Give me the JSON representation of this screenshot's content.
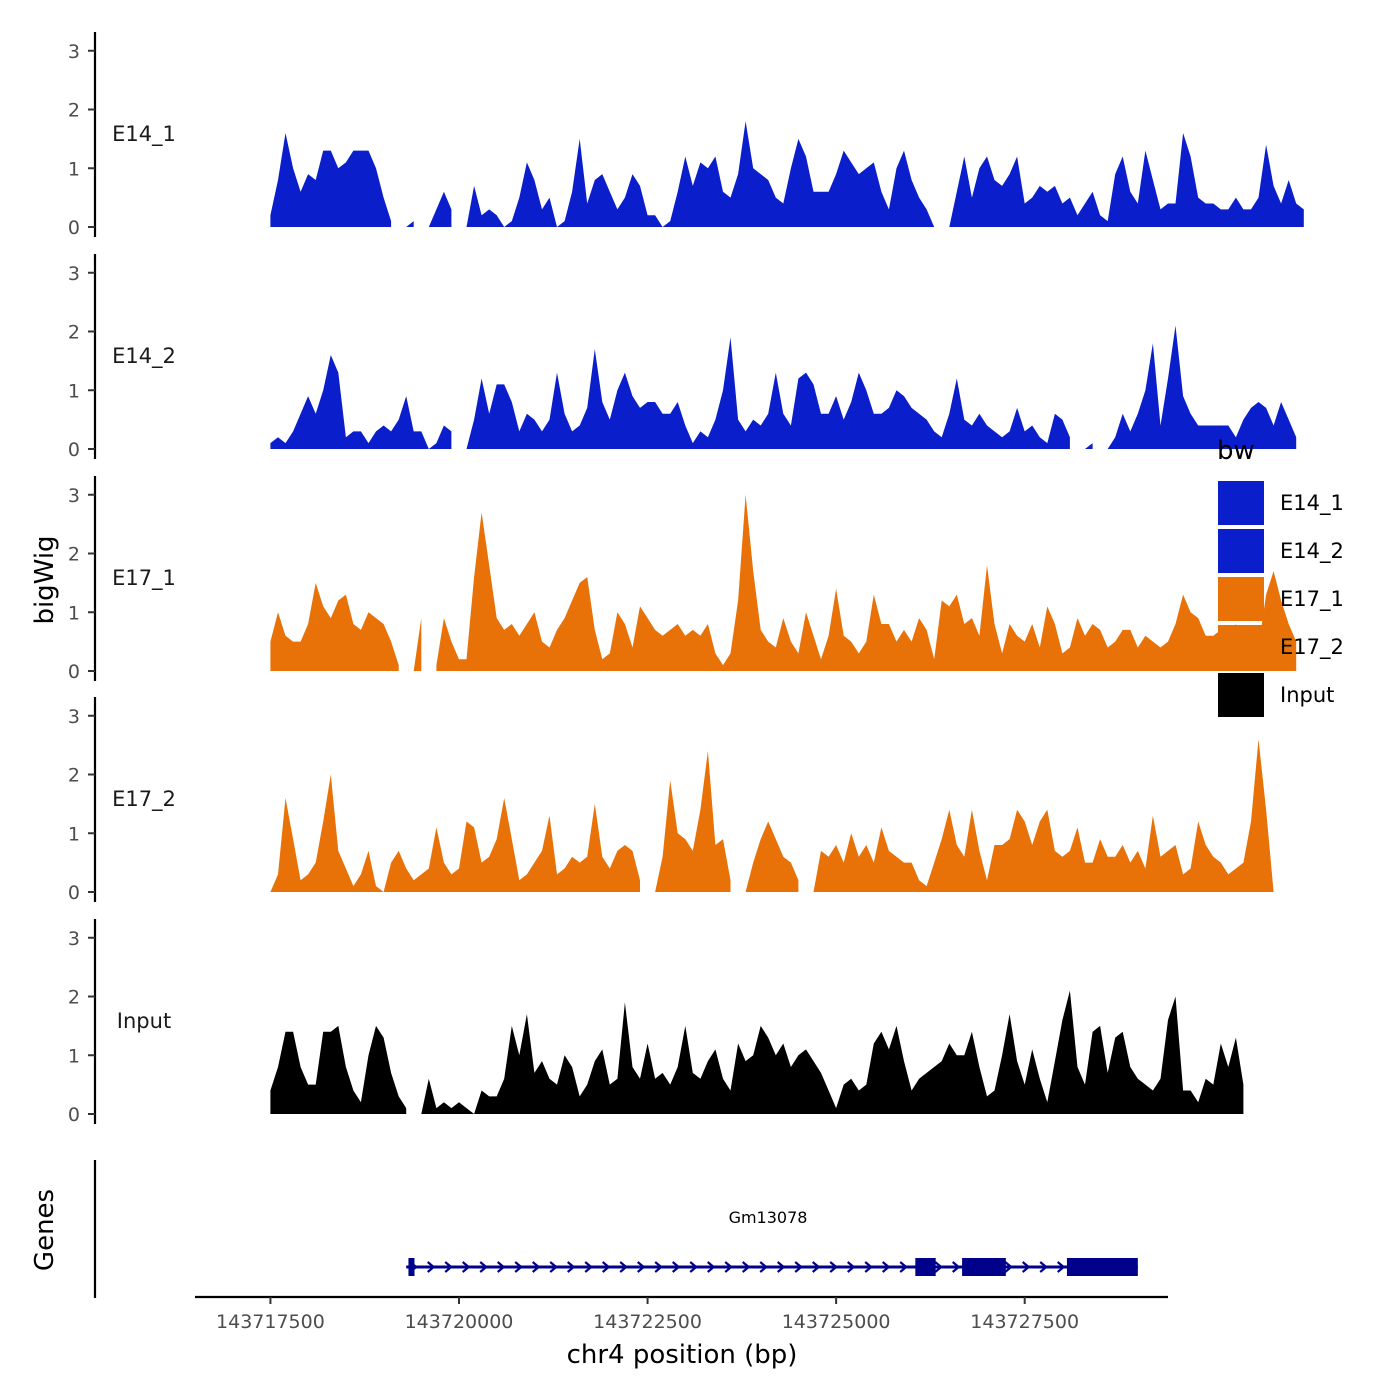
{
  "chart_data": {
    "type": "area",
    "title": "",
    "ylabel": "bigWig",
    "xlabel": "chr4 position (bp)",
    "genes_label": "Genes",
    "ylim": [
      0,
      3.2
    ],
    "yticks": [
      0,
      1,
      2,
      3
    ],
    "xlim": [
      143716500,
      143729400
    ],
    "xticks": [
      143717500,
      143720000,
      143722500,
      143725000,
      143727500
    ],
    "xtick_labels": [
      "143717500",
      "143720000",
      "143722500",
      "143725000",
      "143727500"
    ],
    "legend": {
      "title": "bw",
      "position": "right",
      "entries": [
        {
          "label": "E14_1",
          "color": "#0a1ecc"
        },
        {
          "label": "E14_2",
          "color": "#0a1ecc"
        },
        {
          "label": "E17_1",
          "color": "#e87207"
        },
        {
          "label": "E17_2",
          "color": "#e87207"
        },
        {
          "label": "Input",
          "color": "#000000"
        }
      ]
    },
    "series": [
      {
        "name": "E14_1",
        "label": "E14_1",
        "color": "#0a1ecc",
        "x0": 143717500,
        "step": 100,
        "values": [
          0.2,
          0.8,
          1.6,
          1.0,
          0.6,
          0.9,
          0.8,
          1.3,
          1.3,
          1.0,
          1.1,
          1.3,
          1.3,
          1.3,
          1.0,
          0.5,
          0.1,
          null,
          0.0,
          0.1,
          null,
          0.0,
          0.3,
          0.6,
          0.3,
          null,
          0.0,
          0.7,
          0.2,
          0.3,
          0.2,
          0.0,
          0.1,
          0.5,
          1.1,
          0.8,
          0.3,
          0.5,
          0.0,
          0.1,
          0.6,
          1.5,
          0.4,
          0.8,
          0.9,
          0.6,
          0.3,
          0.5,
          0.9,
          0.7,
          0.2,
          0.2,
          0.0,
          0.1,
          0.6,
          1.2,
          0.7,
          1.1,
          1.0,
          1.2,
          0.6,
          0.5,
          0.9,
          1.8,
          1.0,
          0.9,
          0.8,
          0.5,
          0.4,
          1.0,
          1.5,
          1.2,
          0.6,
          0.6,
          0.6,
          0.9,
          1.3,
          1.1,
          0.9,
          1.0,
          1.1,
          0.6,
          0.3,
          1.0,
          1.3,
          0.8,
          0.5,
          0.3,
          0.0,
          null,
          0.0,
          0.6,
          1.2,
          0.5,
          1.0,
          1.2,
          0.8,
          0.7,
          0.9,
          1.2,
          0.4,
          0.5,
          0.7,
          0.6,
          0.7,
          0.4,
          0.5,
          0.2,
          0.4,
          0.6,
          0.2,
          0.1,
          0.9,
          1.2,
          0.6,
          0.4,
          1.3,
          0.8,
          0.3,
          0.4,
          0.4,
          1.6,
          1.2,
          0.5,
          0.4,
          0.4,
          0.3,
          0.3,
          0.5,
          0.3,
          0.3,
          0.5,
          1.4,
          0.7,
          0.4,
          0.8,
          0.4,
          0.3
        ]
      },
      {
        "name": "E14_2",
        "label": "E14_2",
        "color": "#0a1ecc",
        "x0": 143717500,
        "step": 100,
        "values": [
          0.1,
          0.2,
          0.1,
          0.3,
          0.6,
          0.9,
          0.6,
          1.0,
          1.6,
          1.3,
          0.2,
          0.3,
          0.3,
          0.1,
          0.3,
          0.4,
          0.3,
          0.5,
          0.9,
          0.3,
          0.3,
          0.0,
          0.1,
          0.4,
          0.3,
          null,
          0.0,
          0.5,
          1.2,
          0.6,
          1.1,
          1.1,
          0.8,
          0.3,
          0.6,
          0.5,
          0.3,
          0.5,
          1.3,
          0.6,
          0.3,
          0.4,
          0.7,
          1.7,
          0.8,
          0.5,
          1.0,
          1.3,
          0.9,
          0.7,
          0.8,
          0.8,
          0.6,
          0.6,
          0.8,
          0.4,
          0.1,
          0.3,
          0.2,
          0.5,
          1.0,
          1.9,
          0.5,
          0.3,
          0.5,
          0.4,
          0.6,
          1.3,
          0.6,
          0.4,
          1.2,
          1.3,
          1.1,
          0.6,
          0.6,
          0.9,
          0.5,
          0.8,
          1.3,
          1.0,
          0.6,
          0.6,
          0.7,
          1.0,
          0.9,
          0.7,
          0.6,
          0.5,
          0.3,
          0.2,
          0.6,
          1.2,
          0.5,
          0.4,
          0.6,
          0.4,
          0.3,
          0.2,
          0.3,
          0.7,
          0.3,
          0.4,
          0.2,
          0.1,
          0.6,
          0.5,
          0.2,
          null,
          0.0,
          0.1,
          null,
          0.0,
          0.2,
          0.6,
          0.3,
          0.6,
          1.0,
          1.8,
          0.4,
          1.2,
          2.1,
          0.9,
          0.6,
          0.4,
          0.4,
          0.4,
          0.4,
          0.4,
          0.2,
          0.5,
          0.7,
          0.8,
          0.7,
          0.4,
          0.8,
          0.5,
          0.2
        ]
      },
      {
        "name": "E17_1",
        "label": "E17_1",
        "color": "#e87207",
        "x0": 143717500,
        "step": 100,
        "values": [
          0.5,
          1.0,
          0.6,
          0.5,
          0.5,
          0.8,
          1.5,
          1.1,
          0.9,
          1.2,
          1.3,
          0.8,
          0.7,
          1.0,
          0.9,
          0.8,
          0.5,
          0.1,
          null,
          0.0,
          0.9,
          null,
          0.1,
          0.9,
          0.5,
          0.2,
          0.2,
          1.6,
          2.7,
          1.8,
          0.9,
          0.7,
          0.8,
          0.6,
          0.8,
          1.0,
          0.5,
          0.4,
          0.7,
          0.9,
          1.2,
          1.5,
          1.6,
          0.7,
          0.2,
          0.3,
          1.0,
          0.8,
          0.4,
          1.1,
          0.9,
          0.7,
          0.6,
          0.7,
          0.8,
          0.6,
          0.7,
          0.6,
          0.8,
          0.3,
          0.1,
          0.3,
          1.2,
          3.0,
          1.7,
          0.7,
          0.5,
          0.4,
          0.9,
          0.5,
          0.3,
          1.0,
          0.6,
          0.2,
          0.6,
          1.4,
          0.6,
          0.5,
          0.3,
          0.5,
          1.3,
          0.8,
          0.8,
          0.5,
          0.7,
          0.5,
          0.9,
          0.7,
          0.2,
          1.2,
          1.1,
          1.3,
          0.8,
          0.9,
          0.6,
          1.8,
          0.8,
          0.3,
          0.8,
          0.6,
          0.5,
          0.8,
          0.4,
          1.1,
          0.8,
          0.3,
          0.4,
          0.9,
          0.6,
          0.8,
          0.7,
          0.4,
          0.5,
          0.7,
          0.7,
          0.4,
          0.6,
          0.5,
          0.4,
          0.5,
          0.8,
          1.3,
          1.0,
          0.9,
          0.6,
          0.6,
          0.7,
          0.5,
          0.8,
          0.3,
          0.5,
          0.4,
          1.3,
          1.7,
          1.2,
          0.8,
          0.5
        ]
      },
      {
        "name": "E17_2",
        "label": "E17_2",
        "color": "#e87207",
        "x0": 143717500,
        "step": 100,
        "values": [
          0.0,
          0.3,
          1.6,
          0.9,
          0.2,
          0.3,
          0.5,
          1.2,
          2.0,
          0.7,
          0.4,
          0.1,
          0.3,
          0.7,
          0.1,
          0.0,
          0.5,
          0.7,
          0.4,
          0.2,
          0.3,
          0.4,
          1.1,
          0.5,
          0.3,
          0.4,
          1.2,
          1.1,
          0.5,
          0.6,
          0.9,
          1.6,
          0.9,
          0.2,
          0.3,
          0.5,
          0.7,
          1.3,
          0.3,
          0.4,
          0.6,
          0.5,
          0.6,
          1.5,
          0.6,
          0.4,
          0.7,
          0.8,
          0.7,
          0.2,
          null,
          0.0,
          0.6,
          1.9,
          1.0,
          0.9,
          0.7,
          1.4,
          2.4,
          0.8,
          0.9,
          0.2,
          null,
          0.0,
          0.5,
          0.9,
          1.2,
          0.9,
          0.6,
          0.5,
          0.2,
          null,
          0.0,
          0.7,
          0.6,
          0.8,
          0.5,
          1.0,
          0.6,
          0.8,
          0.5,
          1.1,
          0.7,
          0.6,
          0.5,
          0.5,
          0.2,
          0.1,
          0.5,
          0.9,
          1.4,
          0.8,
          0.6,
          1.4,
          0.7,
          0.2,
          0.8,
          0.8,
          0.9,
          1.4,
          1.2,
          0.8,
          1.2,
          1.4,
          0.7,
          0.6,
          0.7,
          1.1,
          0.5,
          0.5,
          0.9,
          0.6,
          0.6,
          0.8,
          0.5,
          0.7,
          0.4,
          1.3,
          0.6,
          0.7,
          0.8,
          0.3,
          0.4,
          1.2,
          0.8,
          0.6,
          0.5,
          0.3,
          0.4,
          0.5,
          1.2,
          2.6,
          1.4,
          0.0
        ]
      },
      {
        "name": "Input",
        "label": "Input",
        "color": "#000000",
        "x0": 143717500,
        "step": 100,
        "values": [
          0.4,
          0.8,
          1.4,
          1.4,
          0.8,
          0.5,
          0.5,
          1.4,
          1.4,
          1.5,
          0.8,
          0.4,
          0.2,
          1.0,
          1.5,
          1.3,
          0.7,
          0.3,
          0.1,
          null,
          0.0,
          0.6,
          0.1,
          0.2,
          0.1,
          0.2,
          0.1,
          0.0,
          0.4,
          0.3,
          0.3,
          0.6,
          1.5,
          1.0,
          1.7,
          0.7,
          0.9,
          0.6,
          0.5,
          1.0,
          0.8,
          0.3,
          0.5,
          0.9,
          1.1,
          0.5,
          0.6,
          1.9,
          0.8,
          0.6,
          1.2,
          0.6,
          0.7,
          0.5,
          0.8,
          1.5,
          0.7,
          0.6,
          0.9,
          1.1,
          0.6,
          0.4,
          1.2,
          0.9,
          1.0,
          1.5,
          1.3,
          1.0,
          1.2,
          0.8,
          1.0,
          1.1,
          0.9,
          0.7,
          0.4,
          0.1,
          0.5,
          0.6,
          0.4,
          0.5,
          1.2,
          1.4,
          1.1,
          1.5,
          0.9,
          0.4,
          0.6,
          0.7,
          0.8,
          0.9,
          1.2,
          1.0,
          1.0,
          1.4,
          0.8,
          0.3,
          0.4,
          1.0,
          1.7,
          0.9,
          0.5,
          1.1,
          0.6,
          0.2,
          0.9,
          1.6,
          2.1,
          0.8,
          0.5,
          1.4,
          1.5,
          0.7,
          1.3,
          1.4,
          0.8,
          0.6,
          0.5,
          0.4,
          0.6,
          1.6,
          2.0,
          0.4,
          0.4,
          0.2,
          0.6,
          0.5,
          1.2,
          0.8,
          1.3,
          0.5
        ]
      }
    ],
    "genes": [
      {
        "name": "Gm13078",
        "strand": "+",
        "color": "#00008b",
        "start": 143719300,
        "end": 143729000,
        "exons": [
          [
            143719330,
            143719410
          ],
          [
            143726050,
            143726320
          ],
          [
            143726670,
            143727250
          ],
          [
            143728060,
            143729000
          ]
        ]
      }
    ]
  }
}
